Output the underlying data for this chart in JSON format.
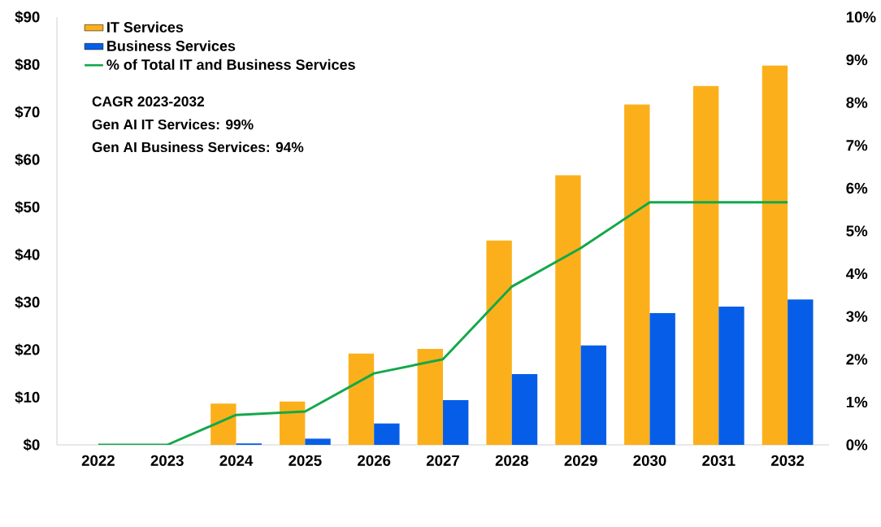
{
  "chart_data": {
    "type": "bar",
    "categories": [
      "2022",
      "2023",
      "2024",
      "2025",
      "2026",
      "2027",
      "2028",
      "2029",
      "2030",
      "2031",
      "2032"
    ],
    "series": [
      {
        "name": "IT Services",
        "color": "#fbb01b",
        "values": [
          0,
          0,
          8.7,
          9.1,
          19.2,
          20.2,
          43,
          56.7,
          71.6,
          75.5,
          79.8
        ]
      },
      {
        "name": "Business Services",
        "color": "#065ee8",
        "values": [
          0,
          0,
          0.3,
          1.3,
          4.5,
          9.4,
          14.9,
          20.9,
          27.7,
          29.1,
          30.6
        ]
      },
      {
        "name": "% of Total IT and Business Services",
        "type": "line",
        "axis": "y2",
        "color": "#13a84a",
        "values": [
          0,
          0,
          0.7,
          0.78,
          1.67,
          2.0,
          3.7,
          4.6,
          5.67,
          5.67,
          5.67
        ]
      }
    ],
    "ylim": [
      0,
      90
    ],
    "yticks": [
      {
        "value": 0,
        "label": "$0"
      },
      {
        "value": 10,
        "label": "$10"
      },
      {
        "value": 20,
        "label": "$20"
      },
      {
        "value": 30,
        "label": "$30"
      },
      {
        "value": 40,
        "label": "$40"
      },
      {
        "value": 50,
        "label": "$50"
      },
      {
        "value": 60,
        "label": "$60"
      },
      {
        "value": 70,
        "label": "$70"
      },
      {
        "value": 80,
        "label": "$80"
      },
      {
        "value": 90,
        "label": "$90"
      }
    ],
    "y2lim": [
      0,
      10
    ],
    "y2ticks": [
      {
        "value": 0,
        "label": "0%"
      },
      {
        "value": 1,
        "label": "1%"
      },
      {
        "value": 2,
        "label": "2%"
      },
      {
        "value": 3,
        "label": "3%"
      },
      {
        "value": 4,
        "label": "4%"
      },
      {
        "value": 5,
        "label": "5%"
      },
      {
        "value": 6,
        "label": "6%"
      },
      {
        "value": 7,
        "label": "7%"
      },
      {
        "value": 8,
        "label": "8%"
      },
      {
        "value": 9,
        "label": "9%"
      },
      {
        "value": 10,
        "label": "10%"
      }
    ],
    "legend": "top left",
    "grid": false,
    "marker": "none",
    "annotations": [
      "CAGR 2023-2032",
      "Gen AI IT Services: 99%",
      "Gen AI Business Services: 94%"
    ]
  }
}
